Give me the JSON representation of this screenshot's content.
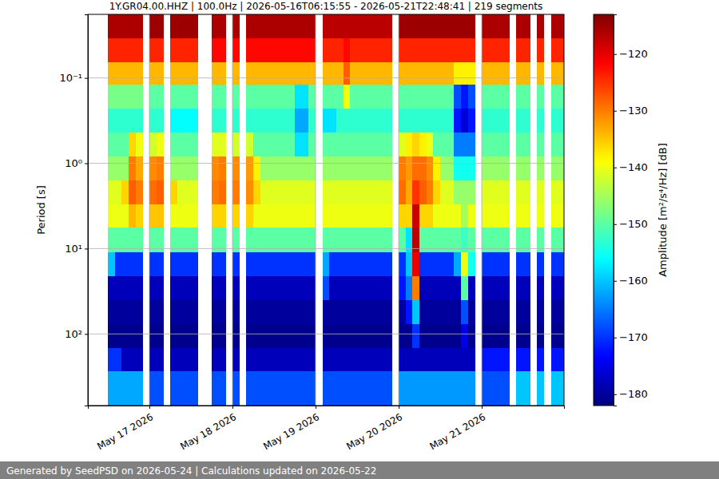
{
  "chart_data": {
    "type": "heatmap",
    "title": "1Y.GR04.00.HHZ | 100.0Hz | 2026-05-16T06:15:55 - 2026-05-21T22:48:41 | 219 segments",
    "ylabel": "Period [s]",
    "colorbar_label": "Amplitude [m²/s⁴/Hz] [dB]",
    "footer": "Generated by SeedPSD on 2026-05-24 | Calculations updated on 2026-05-22",
    "log": "y",
    "grid": true,
    "xlim": [
      "2026-05-16T06:15",
      "2026-05-21T23:45"
    ],
    "xticks": [
      {
        "value": "2026-05-17T00:00",
        "label": "May 17 2026"
      },
      {
        "value": "2026-05-18T00:00",
        "label": "May 18 2026"
      },
      {
        "value": "2026-05-19T00:00",
        "label": "May 19 2026"
      },
      {
        "value": "2026-05-20T00:00",
        "label": "May 20 2026"
      },
      {
        "value": "2026-05-21T00:00",
        "label": "May 21 2026"
      }
    ],
    "ylim": [
      0.018,
      690
    ],
    "yticks": [
      {
        "value": 0.1,
        "label": "10⁻¹"
      },
      {
        "value": 1,
        "label": "10⁰"
      },
      {
        "value": 10,
        "label": "10¹"
      },
      {
        "value": 100,
        "label": "10²"
      }
    ],
    "zlim": [
      -182,
      -113
    ],
    "zticks": [
      {
        "value": -120,
        "label": "−120"
      },
      {
        "value": -130,
        "label": "−130"
      },
      {
        "value": -140,
        "label": "−140"
      },
      {
        "value": -150,
        "label": "−150"
      },
      {
        "value": -160,
        "label": "−160"
      },
      {
        "value": -170,
        "label": "−170"
      },
      {
        "value": -180,
        "label": "−180"
      }
    ],
    "x_bins": [
      "2026-05-16T06:00",
      "2026-05-16T08:00",
      "2026-05-16T10:00",
      "2026-05-16T12:00",
      "2026-05-16T14:00",
      "2026-05-16T16:00",
      "2026-05-16T18:00",
      "2026-05-16T20:00",
      "2026-05-16T22:00",
      "2026-05-17T00:00",
      "2026-05-17T02:00",
      "2026-05-17T04:00",
      "2026-05-17T06:00",
      "2026-05-17T08:00",
      "2026-05-17T10:00",
      "2026-05-17T12:00",
      "2026-05-17T14:00",
      "2026-05-17T16:00",
      "2026-05-17T18:00",
      "2026-05-17T20:00",
      "2026-05-17T22:00",
      "2026-05-18T00:00",
      "2026-05-18T02:00",
      "2026-05-18T04:00",
      "2026-05-18T06:00",
      "2026-05-18T08:00",
      "2026-05-18T10:00",
      "2026-05-18T12:00",
      "2026-05-18T14:00",
      "2026-05-18T16:00",
      "2026-05-18T18:00",
      "2026-05-18T20:00",
      "2026-05-18T22:00",
      "2026-05-19T00:00",
      "2026-05-19T02:00",
      "2026-05-19T04:00",
      "2026-05-19T06:00",
      "2026-05-19T08:00",
      "2026-05-19T10:00",
      "2026-05-19T12:00",
      "2026-05-19T14:00",
      "2026-05-19T16:00",
      "2026-05-19T18:00",
      "2026-05-19T20:00",
      "2026-05-19T22:00",
      "2026-05-20T00:00",
      "2026-05-20T02:00",
      "2026-05-20T04:00",
      "2026-05-20T06:00",
      "2026-05-20T08:00",
      "2026-05-20T10:00",
      "2026-05-20T12:00",
      "2026-05-20T14:00",
      "2026-05-20T16:00",
      "2026-05-20T18:00",
      "2026-05-20T20:00",
      "2026-05-20T22:00",
      "2026-05-21T00:00",
      "2026-05-21T02:00",
      "2026-05-21T04:00",
      "2026-05-21T06:00",
      "2026-05-21T08:00",
      "2026-05-21T10:00",
      "2026-05-21T12:00",
      "2026-05-21T14:00",
      "2026-05-21T16:00",
      "2026-05-21T18:00",
      "2026-05-21T20:00",
      "2026-05-21T22:00",
      "2026-05-22T00:00"
    ],
    "y_bins": [
      0.018,
      0.034,
      0.065,
      0.12,
      0.23,
      0.44,
      0.84,
      1.6,
      3,
      5.7,
      11,
      21,
      40,
      76,
      145,
      275,
      690
    ],
    "z": [
      [
        null,
        null,
        null,
        -116,
        -116,
        -116,
        -116,
        -116,
        null,
        -115,
        -115,
        null,
        -115,
        -115,
        -115,
        -115,
        null,
        null,
        -116,
        -116,
        null,
        -116,
        null,
        -116,
        -116,
        -116,
        -116,
        -116,
        -116,
        -116,
        -116,
        -116,
        -116,
        null,
        -117,
        -117,
        -117,
        -117,
        -117,
        -117,
        -117,
        -117,
        -117,
        -117,
        null,
        -115,
        -115,
        -115,
        -115,
        -115,
        -115,
        -115,
        -115,
        -115,
        -115,
        -115,
        null,
        -116,
        -116,
        -116,
        -116,
        null,
        -116,
        -116,
        null,
        -116,
        null,
        -116,
        -116
      ],
      [
        null,
        null,
        null,
        -124,
        -124,
        -124,
        -124,
        -124,
        null,
        -124,
        -124,
        null,
        -124,
        -124,
        -124,
        -124,
        null,
        null,
        -122,
        -122,
        null,
        -122,
        null,
        -122,
        -122,
        -122,
        -122,
        -122,
        -122,
        -122,
        -122,
        -122,
        -122,
        null,
        -124,
        -124,
        -124,
        -122,
        -124,
        -124,
        -124,
        -124,
        -124,
        -124,
        null,
        -124,
        -124,
        -124,
        -124,
        -124,
        -124,
        -124,
        -124,
        -124,
        -124,
        -124,
        null,
        -124,
        -124,
        -124,
        -124,
        null,
        -124,
        -124,
        null,
        -124,
        null,
        -124,
        -124
      ],
      [
        null,
        null,
        null,
        -134,
        -134,
        -134,
        -134,
        -134,
        null,
        -134,
        -134,
        null,
        -134,
        -134,
        -134,
        -134,
        null,
        null,
        -134,
        -134,
        null,
        -134,
        null,
        -134,
        -134,
        -134,
        -134,
        -134,
        -134,
        -134,
        -134,
        -134,
        -134,
        null,
        -134,
        -134,
        -134,
        -128,
        -134,
        -134,
        -134,
        -134,
        -134,
        -134,
        null,
        -134,
        -134,
        -134,
        -134,
        -134,
        -134,
        -134,
        -134,
        -138,
        -138,
        -138,
        null,
        -134,
        -134,
        -134,
        -134,
        null,
        -134,
        -134,
        null,
        -134,
        null,
        -134,
        -134
      ],
      [
        null,
        null,
        null,
        -148,
        -148,
        -148,
        -148,
        -148,
        null,
        -150,
        -150,
        null,
        -150,
        -150,
        -150,
        -150,
        null,
        null,
        -150,
        -150,
        null,
        -150,
        null,
        -150,
        -150,
        -150,
        -150,
        -150,
        -150,
        -150,
        -158,
        -158,
        -150,
        null,
        -150,
        -150,
        -150,
        -140,
        -150,
        -150,
        -150,
        -150,
        -150,
        -150,
        null,
        -150,
        -150,
        -150,
        -150,
        -150,
        -150,
        -150,
        -150,
        -168,
        -172,
        -168,
        null,
        -150,
        -150,
        -150,
        -150,
        null,
        -150,
        -150,
        null,
        -150,
        null,
        -150,
        -150
      ],
      [
        null,
        null,
        null,
        -153,
        -153,
        -153,
        -153,
        -153,
        null,
        -153,
        -153,
        null,
        -156,
        -156,
        -156,
        -156,
        null,
        null,
        -153,
        -153,
        null,
        -153,
        null,
        -153,
        -153,
        -153,
        -153,
        -153,
        -153,
        -153,
        -162,
        -162,
        -153,
        null,
        -158,
        -158,
        -153,
        -153,
        -153,
        -153,
        -153,
        -153,
        -153,
        -153,
        null,
        -153,
        -153,
        -153,
        -153,
        -153,
        -153,
        -153,
        -153,
        -172,
        -176,
        -172,
        null,
        -153,
        -153,
        -153,
        -153,
        null,
        -153,
        -153,
        null,
        -153,
        null,
        -153,
        -153
      ],
      [
        null,
        null,
        null,
        -150,
        -150,
        -150,
        -136,
        -140,
        null,
        -142,
        -140,
        null,
        -150,
        -150,
        -150,
        -150,
        null,
        null,
        -141,
        -141,
        null,
        -142,
        null,
        -142,
        -150,
        -150,
        -150,
        -150,
        -150,
        -150,
        -158,
        -158,
        -150,
        null,
        -150,
        -150,
        -150,
        -150,
        -150,
        -150,
        -150,
        -150,
        -150,
        -150,
        null,
        -141,
        -138,
        -136,
        -138,
        -140,
        -150,
        -150,
        -150,
        -165,
        -165,
        -165,
        null,
        -150,
        -150,
        -150,
        -150,
        null,
        -150,
        -150,
        null,
        -150,
        null,
        -150,
        -150
      ],
      [
        null,
        null,
        null,
        -146,
        -146,
        -146,
        -130,
        -133,
        null,
        -131,
        -130,
        null,
        -146,
        -146,
        -146,
        -146,
        null,
        null,
        -131,
        -130,
        null,
        -131,
        null,
        -132,
        -138,
        -146,
        -146,
        -146,
        -146,
        -146,
        -146,
        -146,
        -146,
        null,
        -146,
        -146,
        -146,
        -146,
        -146,
        -146,
        -146,
        -146,
        -146,
        -146,
        null,
        -130,
        -132,
        -129,
        -129,
        -131,
        -138,
        -146,
        -146,
        -155,
        -155,
        -155,
        null,
        -146,
        -146,
        -146,
        -146,
        null,
        -146,
        -146,
        null,
        -146,
        null,
        -146,
        -146
      ],
      [
        null,
        null,
        null,
        -141,
        -141,
        -136,
        -128,
        -130,
        null,
        -129,
        -128,
        null,
        -136,
        -141,
        -141,
        -141,
        null,
        null,
        -130,
        -129,
        null,
        -130,
        null,
        -131,
        -136,
        -141,
        -141,
        -141,
        -141,
        -141,
        -141,
        -141,
        -141,
        null,
        -141,
        -141,
        -141,
        -141,
        -141,
        -141,
        -141,
        -141,
        -141,
        -141,
        null,
        -129,
        -133,
        -125,
        -128,
        -130,
        -136,
        -141,
        -141,
        -146,
        -146,
        -146,
        null,
        -141,
        -141,
        -141,
        -141,
        null,
        -141,
        -141,
        null,
        -141,
        null,
        -141,
        -141
      ],
      [
        null,
        null,
        null,
        -140,
        -140,
        -140,
        -134,
        -136,
        null,
        -135,
        -135,
        null,
        -140,
        -140,
        -140,
        -140,
        null,
        null,
        -136,
        -136,
        null,
        -136,
        null,
        -136,
        -140,
        -140,
        -140,
        -140,
        -140,
        -140,
        -140,
        -140,
        -140,
        null,
        -140,
        -140,
        -140,
        -140,
        -140,
        -140,
        -140,
        -140,
        -140,
        -140,
        null,
        -136,
        -136,
        -118,
        -136,
        -136,
        -140,
        -140,
        -140,
        -140,
        -145,
        -140,
        null,
        -140,
        -140,
        -140,
        -140,
        null,
        -140,
        -140,
        null,
        -140,
        null,
        -140,
        -140
      ],
      [
        null,
        null,
        null,
        -150,
        -150,
        -150,
        -150,
        -150,
        null,
        -150,
        -150,
        null,
        -150,
        -150,
        -150,
        -150,
        null,
        null,
        -150,
        -150,
        null,
        -150,
        null,
        -150,
        -150,
        -150,
        -150,
        -150,
        -150,
        -150,
        -150,
        -150,
        -150,
        null,
        -150,
        -150,
        -150,
        -150,
        -150,
        -150,
        -150,
        -150,
        -150,
        -150,
        null,
        -150,
        -158,
        -117,
        -150,
        -150,
        -150,
        -150,
        -150,
        -150,
        -152,
        -150,
        null,
        -150,
        -150,
        -150,
        -150,
        null,
        -150,
        -150,
        null,
        -150,
        null,
        -150,
        -150
      ],
      [
        null,
        null,
        null,
        -160,
        -170,
        -170,
        -170,
        -170,
        null,
        -170,
        -170,
        null,
        -170,
        -170,
        -170,
        -170,
        null,
        null,
        -170,
        -170,
        null,
        -170,
        null,
        -170,
        -170,
        -170,
        -170,
        -170,
        -170,
        -170,
        -170,
        -170,
        -170,
        null,
        -162,
        -170,
        -170,
        -170,
        -170,
        -170,
        -170,
        -170,
        -170,
        -170,
        null,
        -170,
        -160,
        -120,
        -170,
        -170,
        -170,
        -170,
        -170,
        -162,
        -140,
        -155,
        null,
        -170,
        -170,
        -170,
        -170,
        null,
        -170,
        -170,
        null,
        -170,
        null,
        -170,
        -170
      ],
      [
        null,
        null,
        null,
        -178,
        -178,
        -178,
        -178,
        -178,
        null,
        -178,
        -178,
        null,
        -178,
        -178,
        -178,
        -178,
        null,
        null,
        -178,
        -178,
        null,
        -178,
        null,
        -178,
        -178,
        -178,
        -178,
        -178,
        -178,
        -178,
        -178,
        -178,
        -178,
        null,
        -168,
        -178,
        -178,
        -178,
        -178,
        -178,
        -178,
        -178,
        -178,
        -178,
        null,
        -172,
        -165,
        -130,
        -178,
        -178,
        -178,
        -178,
        -178,
        -178,
        -150,
        -178,
        null,
        -178,
        -178,
        -178,
        -178,
        null,
        -178,
        -178,
        null,
        -178,
        null,
        -178,
        -178
      ],
      [
        null,
        null,
        null,
        -180,
        -180,
        -180,
        -180,
        -180,
        null,
        -180,
        -180,
        null,
        -180,
        -180,
        -180,
        -180,
        null,
        null,
        -180,
        -180,
        null,
        -180,
        null,
        -180,
        -180,
        -180,
        -180,
        -180,
        -180,
        -180,
        -180,
        -180,
        -180,
        null,
        -180,
        -180,
        -180,
        -180,
        -180,
        -180,
        -180,
        -180,
        -180,
        -180,
        null,
        -180,
        -172,
        -160,
        -180,
        -180,
        -180,
        -180,
        -180,
        -180,
        -168,
        -180,
        null,
        -180,
        -180,
        -180,
        -180,
        null,
        -180,
        -180,
        null,
        -180,
        null,
        -180,
        -180
      ],
      [
        null,
        null,
        null,
        -181,
        -181,
        -181,
        -181,
        -181,
        null,
        -181,
        -181,
        null,
        -181,
        -181,
        -181,
        -181,
        null,
        null,
        -181,
        -181,
        null,
        -181,
        null,
        -181,
        -181,
        -181,
        -181,
        -181,
        -181,
        -181,
        -181,
        -181,
        -181,
        null,
        -181,
        -181,
        -181,
        -181,
        -181,
        -181,
        -181,
        -181,
        -181,
        -181,
        null,
        -181,
        -181,
        -170,
        -181,
        -181,
        -181,
        -181,
        -181,
        -181,
        -175,
        -181,
        null,
        -181,
        -181,
        -181,
        -181,
        null,
        -181,
        -181,
        null,
        -181,
        null,
        -181,
        -181
      ],
      [
        null,
        null,
        null,
        -170,
        -170,
        -178,
        -178,
        -178,
        null,
        -178,
        -178,
        null,
        -178,
        -178,
        -178,
        -178,
        null,
        null,
        -178,
        -178,
        null,
        -178,
        null,
        -178,
        -178,
        -178,
        -178,
        -178,
        -178,
        -178,
        -178,
        -178,
        -178,
        null,
        -178,
        -178,
        -178,
        -178,
        -178,
        -178,
        -178,
        -178,
        -178,
        -178,
        null,
        -178,
        -178,
        -178,
        -178,
        -178,
        -178,
        -178,
        -178,
        -178,
        -178,
        -178,
        null,
        -172,
        -172,
        -172,
        -172,
        null,
        -172,
        -172,
        null,
        -172,
        null,
        -172,
        -172
      ],
      [
        null,
        null,
        null,
        -162,
        -162,
        -162,
        -162,
        -162,
        null,
        -168,
        -168,
        null,
        -168,
        -168,
        -168,
        -168,
        null,
        null,
        -168,
        -168,
        null,
        -168,
        null,
        -168,
        -168,
        -168,
        -168,
        -168,
        -168,
        -168,
        -168,
        -168,
        -168,
        null,
        -168,
        -168,
        -168,
        -168,
        -168,
        -168,
        -168,
        -168,
        -168,
        -168,
        null,
        -163,
        -163,
        -163,
        -163,
        -163,
        -163,
        -163,
        -163,
        -163,
        -163,
        -163,
        null,
        -168,
        -168,
        -168,
        -168,
        null,
        -160,
        -160,
        null,
        -160,
        null,
        -160,
        -160
      ]
    ]
  }
}
